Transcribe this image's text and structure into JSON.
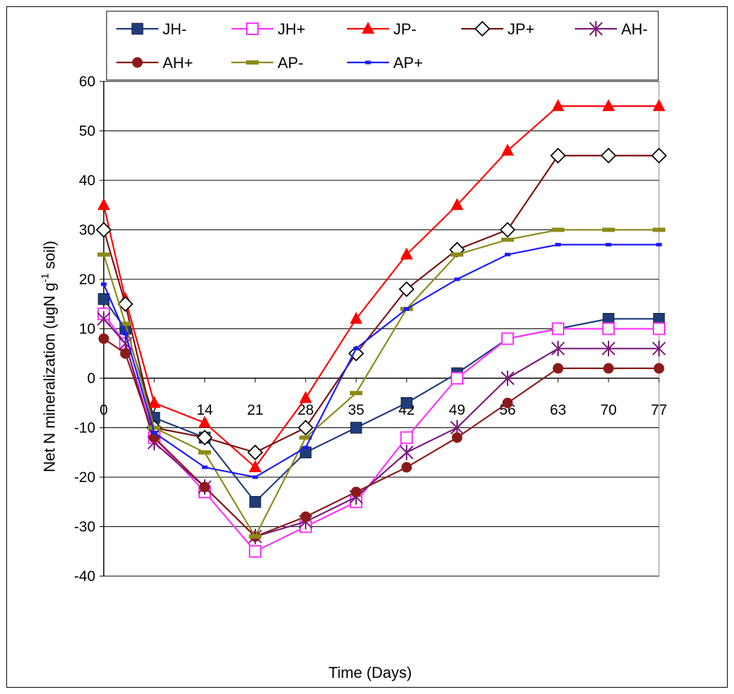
{
  "chart_data": {
    "type": "line",
    "title": "",
    "xlabel": "Time (Days)",
    "ylabel_main": "Net N mineralization (ugN g",
    "ylabel_sup": "-1",
    "ylabel_tail": " soil)",
    "ylim": [
      -40,
      60
    ],
    "yticks": [
      -40,
      -30,
      -20,
      -10,
      0,
      10,
      20,
      30,
      40,
      50,
      60
    ],
    "xticks": [
      0,
      7,
      14,
      21,
      28,
      35,
      42,
      49,
      56,
      63,
      70,
      77
    ],
    "xlim": [
      0,
      77
    ],
    "grid": true,
    "legend_position": "top",
    "series": [
      {
        "name": "JH-",
        "color": "#1f3d7a",
        "marker": "square-filled",
        "x": [
          0,
          3,
          7,
          14,
          21,
          28,
          35,
          42,
          49,
          56,
          63,
          70,
          77
        ],
        "y": [
          16,
          10,
          -8,
          -12,
          -25,
          -15,
          -10,
          -5,
          1,
          8,
          10,
          12,
          12
        ]
      },
      {
        "name": "JH+",
        "color": "#ff33ff",
        "marker": "square-open",
        "x": [
          0,
          3,
          7,
          14,
          21,
          28,
          35,
          42,
          49,
          56,
          63,
          70,
          77
        ],
        "y": [
          13,
          7,
          -12,
          -23,
          -35,
          -30,
          -25,
          -12,
          0,
          8,
          10,
          10,
          10
        ]
      },
      {
        "name": "JP-",
        "color": "#ff0000",
        "marker": "triangle-filled",
        "x": [
          0,
          3,
          7,
          14,
          21,
          28,
          35,
          42,
          49,
          56,
          63,
          70,
          77
        ],
        "y": [
          35,
          16,
          -5,
          -9,
          -18,
          -4,
          12,
          25,
          35,
          46,
          55,
          55,
          55
        ]
      },
      {
        "name": "JP+",
        "color": "#7a1010",
        "marker": "diamond-open",
        "x": [
          0,
          3,
          7,
          14,
          21,
          28,
          35,
          42,
          49,
          56,
          63,
          70,
          77
        ],
        "y": [
          30,
          15,
          -10,
          -12,
          -15,
          -10,
          5,
          18,
          26,
          30,
          45,
          45,
          45
        ]
      },
      {
        "name": "AH-",
        "color": "#7a1a7a",
        "marker": "asterisk",
        "x": [
          0,
          3,
          7,
          14,
          21,
          28,
          35,
          42,
          49,
          56,
          63,
          70,
          77
        ],
        "y": [
          12,
          7,
          -13,
          -22,
          -32,
          -29,
          -24,
          -15,
          -10,
          0,
          6,
          6,
          6
        ]
      },
      {
        "name": "AH+",
        "color": "#8b1a1a",
        "marker": "circle-filled",
        "x": [
          0,
          3,
          7,
          14,
          21,
          28,
          35,
          42,
          49,
          56,
          63,
          70,
          77
        ],
        "y": [
          8,
          5,
          -12,
          -22,
          -32,
          -28,
          -23,
          -18,
          -12,
          -5,
          2,
          2,
          2
        ]
      },
      {
        "name": "AP-",
        "color": "#8b8b1a",
        "marker": "dash",
        "x": [
          0,
          3,
          7,
          14,
          21,
          28,
          35,
          42,
          49,
          56,
          63,
          70,
          77
        ],
        "y": [
          25,
          11,
          -10,
          -15,
          -32,
          -12,
          -3,
          14,
          25,
          28,
          30,
          30,
          30
        ]
      },
      {
        "name": "AP+",
        "color": "#1a1aff",
        "marker": "small-dash",
        "x": [
          0,
          3,
          7,
          14,
          21,
          28,
          35,
          42,
          49,
          56,
          63,
          70,
          77
        ],
        "y": [
          19,
          9,
          -11,
          -18,
          -20,
          -14,
          6,
          14,
          20,
          25,
          27,
          27,
          27
        ]
      }
    ]
  }
}
